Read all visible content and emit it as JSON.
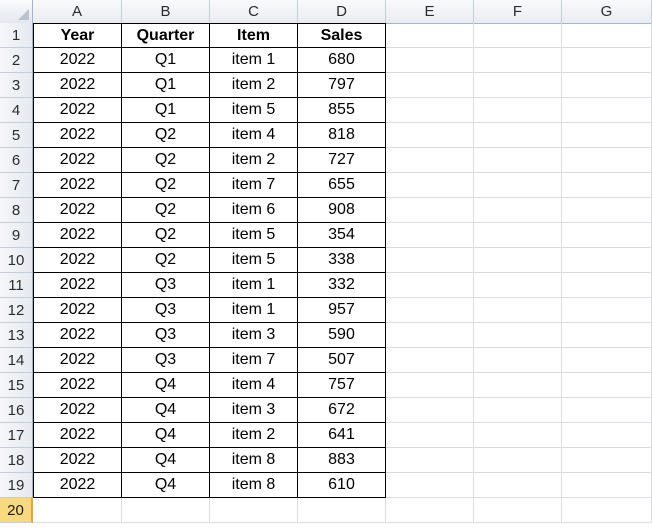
{
  "columns": [
    "A",
    "B",
    "C",
    "D",
    "E",
    "F",
    "G"
  ],
  "row_numbers": [
    "1",
    "2",
    "3",
    "4",
    "5",
    "6",
    "7",
    "8",
    "9",
    "10",
    "11",
    "12",
    "13",
    "14",
    "15",
    "16",
    "17",
    "18",
    "19",
    "20"
  ],
  "active_row": "20",
  "table": {
    "headers": [
      "Year",
      "Quarter",
      "Item",
      "Sales"
    ],
    "rows": [
      [
        "2022",
        "Q1",
        "item 1",
        "680"
      ],
      [
        "2022",
        "Q1",
        "item 2",
        "797"
      ],
      [
        "2022",
        "Q1",
        "item 5",
        "855"
      ],
      [
        "2022",
        "Q2",
        "item 4",
        "818"
      ],
      [
        "2022",
        "Q2",
        "item 2",
        "727"
      ],
      [
        "2022",
        "Q2",
        "item 7",
        "655"
      ],
      [
        "2022",
        "Q2",
        "item 6",
        "908"
      ],
      [
        "2022",
        "Q2",
        "item 5",
        "354"
      ],
      [
        "2022",
        "Q2",
        "item 5",
        "338"
      ],
      [
        "2022",
        "Q3",
        "item 1",
        "332"
      ],
      [
        "2022",
        "Q3",
        "item 1",
        "957"
      ],
      [
        "2022",
        "Q3",
        "item 3",
        "590"
      ],
      [
        "2022",
        "Q3",
        "item 7",
        "507"
      ],
      [
        "2022",
        "Q4",
        "item 4",
        "757"
      ],
      [
        "2022",
        "Q4",
        "item 3",
        "672"
      ],
      [
        "2022",
        "Q4",
        "item 2",
        "641"
      ],
      [
        "2022",
        "Q4",
        "item 8",
        "883"
      ],
      [
        "2022",
        "Q4",
        "item 8",
        "610"
      ]
    ]
  },
  "colors": {
    "header_border": "#9eb6ce",
    "gridline": "#dadcdd",
    "active_row_header": "#f9d97f"
  }
}
